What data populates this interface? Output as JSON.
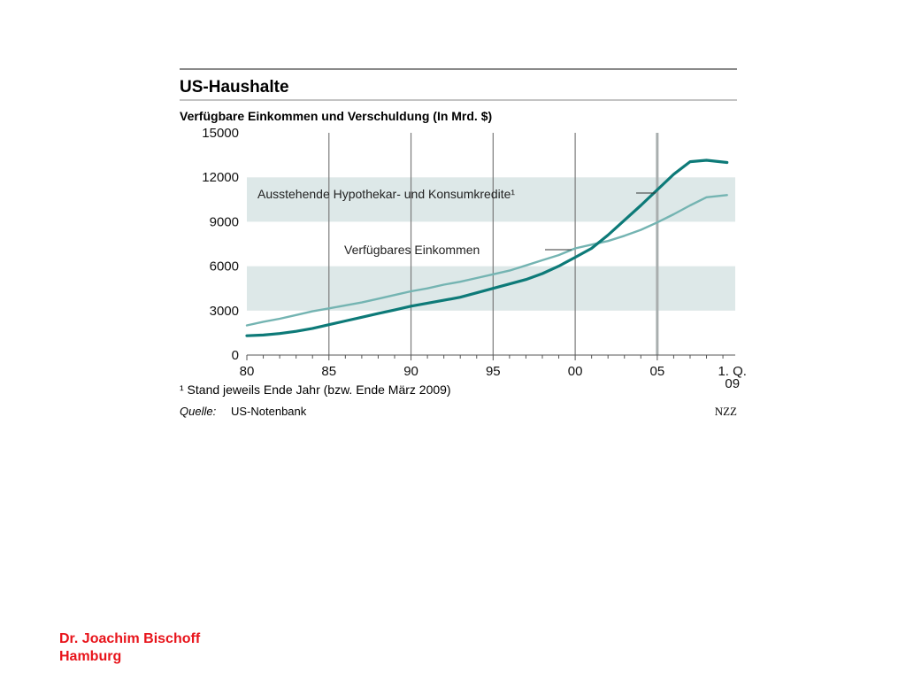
{
  "chart_data": {
    "type": "line",
    "title": "US-Haushalte",
    "subtitle": "Verfügbare Einkommen und Verschuldung (In Mrd. $)",
    "ylim": [
      0,
      15000
    ],
    "yticks": [
      "0",
      "3000",
      "6000",
      "9000",
      "12000",
      "15000"
    ],
    "xtick_labels": [
      "80",
      "85",
      "90",
      "95",
      "00",
      "05",
      "1. Q.\n09"
    ],
    "grid": "alternating horizontal bands, vertical lines every 5 years",
    "footnote": "¹ Stand jeweils Ende Jahr (bzw. Ende März 2009)",
    "source_label": "Quelle:",
    "source": "US-Notenbank",
    "credit": "NZZ",
    "series": [
      {
        "name": "Ausstehende Hypothekar- und Konsumkredite¹",
        "color": "#0d7a78",
        "x": [
          1980,
          1981,
          1982,
          1983,
          1984,
          1985,
          1986,
          1987,
          1988,
          1989,
          1990,
          1991,
          1992,
          1993,
          1994,
          1995,
          1996,
          1997,
          1998,
          1999,
          2000,
          2001,
          2002,
          2003,
          2004,
          2005,
          2006,
          2007,
          2008,
          2009.25
        ],
        "values": [
          1300,
          1350,
          1450,
          1600,
          1800,
          2050,
          2300,
          2550,
          2800,
          3050,
          3300,
          3500,
          3700,
          3900,
          4200,
          4500,
          4800,
          5100,
          5500,
          6000,
          6600,
          7200,
          8100,
          9100,
          10100,
          11150,
          12200,
          13050,
          13150,
          13000
        ]
      },
      {
        "name": "Verfügbares Einkommen",
        "color": "#74b4b2",
        "x": [
          1980,
          1981,
          1982,
          1983,
          1984,
          1985,
          1986,
          1987,
          1988,
          1989,
          1990,
          1991,
          1992,
          1993,
          1994,
          1995,
          1996,
          1997,
          1998,
          1999,
          2000,
          2001,
          2002,
          2003,
          2004,
          2005,
          2006,
          2007,
          2008,
          2009.25
        ],
        "values": [
          2000,
          2250,
          2450,
          2700,
          2950,
          3150,
          3350,
          3550,
          3800,
          4050,
          4300,
          4500,
          4750,
          4950,
          5200,
          5450,
          5700,
          6050,
          6400,
          6750,
          7200,
          7450,
          7700,
          8050,
          8450,
          8950,
          9500,
          10100,
          10650,
          10800
        ]
      }
    ]
  },
  "footer": {
    "author": "Dr. Joachim Bischoff",
    "city": "Hamburg"
  }
}
